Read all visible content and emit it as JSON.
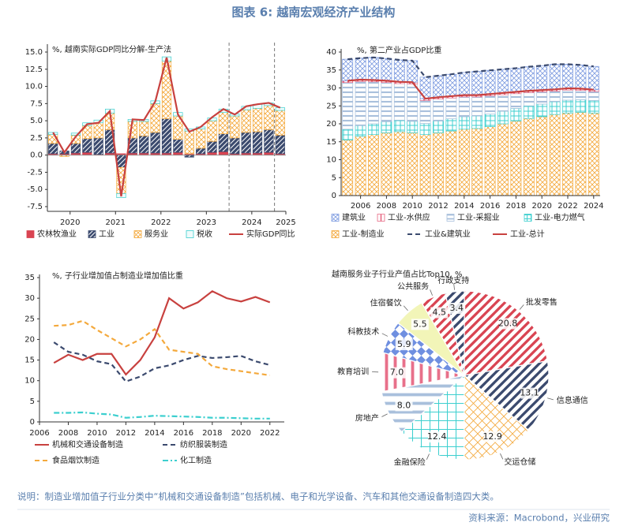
{
  "title": "图表 6: 越南宏观经济产业结构",
  "chart_data": [
    {
      "type": "bar",
      "stacked": true,
      "title": "%, 越南实际GDP同比分解-生产法",
      "categories": [
        null,
        "2020",
        null,
        null,
        null,
        "2021",
        null,
        null,
        null,
        "2022",
        null,
        null,
        null,
        "2023",
        null,
        null,
        null,
        "2024",
        null,
        null,
        "2025"
      ],
      "ylim": [
        -7.5,
        15
      ],
      "yticks": [
        -7.5,
        {
          "value": -5,
          "label": "-5.0"
        },
        -2.5,
        {
          "value": 0,
          "label": "0.0"
        },
        2.5,
        {
          "value": 5,
          "label": "5.0"
        },
        7.5,
        {
          "value": 10,
          "label": "10.0"
        },
        12.5,
        {
          "value": 15,
          "label": "15.0"
        }
      ],
      "series": [
        {
          "name": "农林牧渔业",
          "color": "#d94452",
          "pattern": "solid",
          "values": [
            0.2,
            0.2,
            0.3,
            0.4,
            0.1,
            0.3,
            0.2,
            0.3,
            0.3,
            0.3,
            0.3,
            0.4,
            0.2,
            0.2,
            0.4,
            0.5,
            0.2,
            0.3,
            0.3,
            0.4,
            0.2
          ]
        },
        {
          "name": "工业",
          "color": "#3b4a6e",
          "pattern": "diagonal-inverse",
          "values": [
            1.5,
            0.4,
            1.4,
            2.0,
            2.4,
            3.4,
            -1.8,
            2.2,
            2.5,
            3.0,
            5.0,
            1.9,
            -0.3,
            0.8,
            1.6,
            2.6,
            2.3,
            3.0,
            3.1,
            3.3,
            2.7
          ]
        },
        {
          "name": "服务业",
          "color": "#f4a93c",
          "pattern": "crosshatch",
          "values": [
            1.3,
            -0.2,
            1.2,
            1.9,
            2.2,
            2.4,
            -3.8,
            2.4,
            2.1,
            4.2,
            8.4,
            3.4,
            3.3,
            2.8,
            3.0,
            3.1,
            3.2,
            3.3,
            3.4,
            3.5,
            3.6
          ]
        },
        {
          "name": "税收",
          "color": "#3ccfcf",
          "pattern": "outline",
          "values": [
            0.3,
            0,
            0.3,
            0.4,
            0.4,
            0.6,
            -0.6,
            0.3,
            0.3,
            0.4,
            0.6,
            0.5,
            0.3,
            0.3,
            0.4,
            0.5,
            0.3,
            0.5,
            0.6,
            0.4,
            0.4
          ]
        },
        {
          "name": "实际GDP同比",
          "type": "line",
          "color": "#c8413f",
          "values": [
            3.3,
            0.4,
            2.7,
            4.5,
            4.7,
            6.4,
            -6.0,
            5.2,
            5.1,
            7.8,
            14.2,
            5.9,
            3.4,
            4.1,
            5.5,
            6.7,
            5.9,
            7.1,
            7.4,
            7.6,
            6.9
          ]
        }
      ]
    },
    {
      "type": "bar",
      "stacked": true,
      "stack_reverse": true,
      "title": "%, 第二产业占GDP比重",
      "categories": [
        null,
        "2006",
        null,
        "2008",
        null,
        "2010",
        null,
        "2012",
        null,
        "2014",
        null,
        "2016",
        null,
        "2018",
        null,
        "2020",
        null,
        "2022",
        null,
        "2024"
      ],
      "ylim": [
        0,
        40
      ],
      "yticks": [
        0,
        5,
        10,
        15,
        20,
        25,
        30,
        35,
        40
      ],
      "series": [
        {
          "name": "建筑业",
          "color": "#7d9be0",
          "pattern": "crosshatch",
          "values": [
            6.0,
            6.0,
            6.3,
            6.2,
            6.1,
            6.0,
            6.0,
            6.0,
            6.1,
            6.3,
            6.6,
            6.6,
            6.6,
            6.6,
            6.7,
            6.8,
            7.0,
            6.7,
            6.6,
            6.5
          ]
        },
        {
          "name": "工业-水供应",
          "color": "#e8708a",
          "pattern": "vertical",
          "values": [
            0.5,
            0.5,
            0.5,
            0.5,
            0.5,
            0.5,
            0.5,
            0.5,
            0.5,
            0.5,
            0.5,
            0.5,
            0.5,
            0.5,
            0.5,
            0.5,
            0.5,
            0.5,
            0.5,
            0.5
          ]
        },
        {
          "name": "工业-采掘业",
          "color": "#a9c0dc",
          "pattern": "horizontal",
          "values": [
            13.0,
            12.3,
            11.7,
            10.9,
            10.2,
            10.4,
            6.4,
            6.1,
            5.8,
            5.5,
            5.3,
            5.1,
            4.6,
            4.1,
            3.7,
            3.4,
            2.9,
            2.8,
            2.6,
            2.5
          ]
        },
        {
          "name": "工业-电力燃气",
          "color": "#3ccfcf",
          "pattern": "grid",
          "values": [
            3.0,
            3.0,
            3.0,
            3.1,
            3.2,
            3.2,
            3.1,
            3.3,
            3.4,
            3.5,
            3.5,
            3.5,
            3.5,
            3.5,
            3.5,
            3.5,
            3.6,
            3.6,
            3.5,
            3.5
          ]
        },
        {
          "name": "工业-制造业",
          "color": "#f4a93c",
          "pattern": "crosshatch",
          "values": [
            15.5,
            16.5,
            17.0,
            17.5,
            17.8,
            17.5,
            17.0,
            17.5,
            18.0,
            18.5,
            18.7,
            19.2,
            20.0,
            20.8,
            21.5,
            22.0,
            22.6,
            23.0,
            23.2,
            23.0
          ]
        },
        {
          "name": "工业&建筑业",
          "type": "line",
          "dash": "dashed",
          "color": "#3b4a6e",
          "values": [
            38.0,
            38.3,
            38.5,
            38.2,
            37.8,
            37.6,
            33.0,
            33.4,
            33.8,
            34.3,
            34.6,
            34.9,
            35.2,
            35.5,
            35.9,
            36.2,
            36.6,
            36.6,
            36.4,
            36.0
          ]
        },
        {
          "name": "工业-总计",
          "type": "line",
          "color": "#c8413f",
          "values": [
            32.0,
            32.3,
            32.2,
            32.0,
            31.7,
            31.6,
            27.0,
            27.4,
            27.7,
            28.0,
            28.0,
            28.3,
            28.6,
            28.9,
            29.2,
            29.4,
            29.6,
            29.9,
            29.8,
            29.5
          ]
        }
      ]
    },
    {
      "type": "line",
      "title": "%, 子行业增加值占制造业增加值比重",
      "x": [
        2007,
        2008,
        2009,
        2010,
        2011,
        2012,
        2013,
        2014,
        2015,
        2016,
        2017,
        2018,
        2019,
        2020,
        2021,
        2022
      ],
      "xlim": [
        2006,
        2023
      ],
      "xticks": [
        2006,
        2008,
        2010,
        2012,
        2014,
        2016,
        2018,
        2020,
        2022
      ],
      "ylim": [
        0,
        35
      ],
      "yticks": [
        0,
        5,
        10,
        15,
        20,
        25,
        30,
        35
      ],
      "series": [
        {
          "name": "机械和交通设备制造",
          "color": "#c8413f",
          "dash": "solid",
          "values": [
            14.3,
            16.3,
            15.0,
            16.5,
            16.5,
            11.5,
            15.0,
            20.5,
            30.0,
            27.5,
            29.0,
            31.7,
            30.0,
            29.2,
            30.3,
            29.0
          ]
        },
        {
          "name": "纺织服装制造",
          "color": "#3b4a6e",
          "dash": "dashed",
          "values": [
            19.3,
            17.0,
            16.3,
            14.7,
            14.0,
            9.8,
            11.0,
            13.0,
            13.7,
            15.0,
            16.0,
            15.5,
            15.7,
            16.0,
            14.7,
            13.8
          ]
        },
        {
          "name": "食品烟饮制造",
          "color": "#f4a93c",
          "dash": "dashed",
          "values": [
            23.3,
            23.5,
            24.5,
            22.3,
            20.3,
            18.3,
            20.0,
            22.5,
            17.5,
            17.0,
            16.5,
            13.5,
            12.8,
            12.3,
            11.8,
            11.3
          ]
        },
        {
          "name": "化工制造",
          "color": "#3ccfcf",
          "dash": "dashdot",
          "values": [
            2.2,
            2.2,
            2.3,
            2.0,
            1.8,
            1.0,
            1.2,
            1.5,
            1.4,
            1.3,
            1.2,
            1.0,
            1.0,
            0.9,
            0.8,
            0.8
          ]
        }
      ]
    },
    {
      "type": "pie",
      "title": "越南服务业子行业产值占比Top10, %",
      "categories": [
        "批发零售",
        "信息通信",
        "交运仓储",
        "金融保险",
        "房地产",
        "教育培训",
        "科教技术",
        "住宿餐饮",
        "公共服务",
        "行政支持"
      ],
      "values": [
        20.8,
        13.1,
        12.9,
        12.4,
        8,
        7,
        5.9,
        5.5,
        4.5,
        3.4
      ],
      "value_labels": [
        "20.8",
        "13.1",
        "12.9",
        "12.4",
        "8.0",
        "7.0",
        "5.9",
        "5.5",
        "4.5",
        "3.4"
      ],
      "colors": [
        "#d94452",
        "#3b4a6e",
        "#f4a93c",
        "#3ccfcf",
        "#a9c0dc",
        "#e8708a",
        "#6f8fe0",
        "#f2f5b8",
        "#d94452",
        "#3b4a6e"
      ],
      "patterns": [
        "diagonal",
        "diagonal",
        "crosshatch",
        "grid",
        "horizontal",
        "vertical",
        "diamond",
        "solid",
        "diagonal",
        "diagonal"
      ]
    }
  ],
  "note": "说明：制造业增加值子行业分类中“机械和交通设备制造”包括机械、电子和光学设备、汽车和其他交通设备制造四大类。",
  "source": "资料来源：Macrobond，兴业研究"
}
